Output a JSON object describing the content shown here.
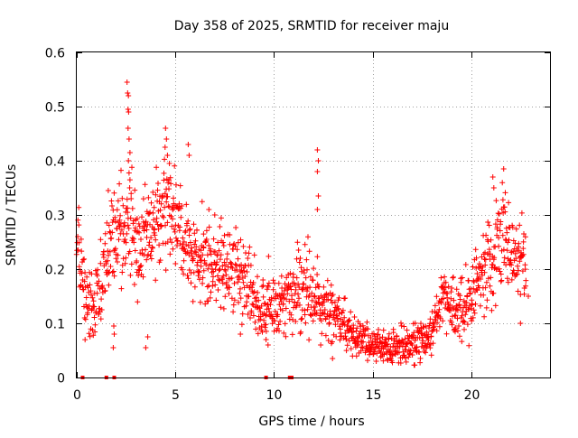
{
  "chart_data": {
    "type": "scatter",
    "title": "Day 358 of 2025, SRMTID for receiver maju",
    "xlabel": "GPS time / hours",
    "ylabel": "SRMTID / TECUs",
    "xlim": [
      0,
      24
    ],
    "ylim": [
      0,
      0.6
    ],
    "xticks": [
      0,
      5,
      10,
      15,
      20
    ],
    "xtick_labels": [
      "0",
      "5",
      "10",
      "15",
      "20"
    ],
    "yticks": [
      0,
      0.1,
      0.2,
      0.3,
      0.4,
      0.5,
      0.6
    ],
    "ytick_labels": [
      "0",
      "0.1",
      "0.2",
      "0.3",
      "0.4",
      "0.5",
      "0.6"
    ],
    "grid": true,
    "marker": "+",
    "color": "#ff0000",
    "series": [
      {
        "name": "SRMTID",
        "envelope": [
          {
            "x": 0.0,
            "y": 0.26,
            "spread": 0.05
          },
          {
            "x": 0.3,
            "y": 0.17,
            "spread": 0.035
          },
          {
            "x": 0.8,
            "y": 0.13,
            "spread": 0.04
          },
          {
            "x": 1.3,
            "y": 0.19,
            "spread": 0.05
          },
          {
            "x": 1.8,
            "y": 0.25,
            "spread": 0.06
          },
          {
            "x": 2.5,
            "y": 0.29,
            "spread": 0.065
          },
          {
            "x": 3.2,
            "y": 0.24,
            "spread": 0.07
          },
          {
            "x": 4.0,
            "y": 0.29,
            "spread": 0.06
          },
          {
            "x": 4.7,
            "y": 0.32,
            "spread": 0.06
          },
          {
            "x": 5.5,
            "y": 0.24,
            "spread": 0.05
          },
          {
            "x": 6.5,
            "y": 0.21,
            "spread": 0.045
          },
          {
            "x": 7.5,
            "y": 0.21,
            "spread": 0.045
          },
          {
            "x": 8.5,
            "y": 0.17,
            "spread": 0.045
          },
          {
            "x": 9.5,
            "y": 0.12,
            "spread": 0.04
          },
          {
            "x": 10.5,
            "y": 0.15,
            "spread": 0.04
          },
          {
            "x": 11.3,
            "y": 0.17,
            "spread": 0.045
          },
          {
            "x": 12.2,
            "y": 0.14,
            "spread": 0.04
          },
          {
            "x": 13.0,
            "y": 0.11,
            "spread": 0.035
          },
          {
            "x": 14.0,
            "y": 0.08,
            "spread": 0.025
          },
          {
            "x": 15.0,
            "y": 0.06,
            "spread": 0.02
          },
          {
            "x": 16.0,
            "y": 0.055,
            "spread": 0.02
          },
          {
            "x": 17.0,
            "y": 0.06,
            "spread": 0.02
          },
          {
            "x": 18.0,
            "y": 0.08,
            "spread": 0.025
          },
          {
            "x": 18.6,
            "y": 0.15,
            "spread": 0.03
          },
          {
            "x": 19.5,
            "y": 0.11,
            "spread": 0.035
          },
          {
            "x": 20.2,
            "y": 0.17,
            "spread": 0.04
          },
          {
            "x": 21.0,
            "y": 0.21,
            "spread": 0.05
          },
          {
            "x": 21.7,
            "y": 0.26,
            "spread": 0.06
          },
          {
            "x": 22.3,
            "y": 0.22,
            "spread": 0.05
          },
          {
            "x": 22.8,
            "y": 0.22,
            "spread": 0.05
          }
        ],
        "spikes": [
          {
            "x": 2.55,
            "y": 0.545
          },
          {
            "x": 2.58,
            "y": 0.525
          },
          {
            "x": 2.62,
            "y": 0.52
          },
          {
            "x": 2.6,
            "y": 0.495
          },
          {
            "x": 2.63,
            "y": 0.49
          },
          {
            "x": 2.6,
            "y": 0.46
          },
          {
            "x": 2.65,
            "y": 0.44
          },
          {
            "x": 2.7,
            "y": 0.415
          },
          {
            "x": 2.62,
            "y": 0.4
          },
          {
            "x": 4.5,
            "y": 0.46
          },
          {
            "x": 4.55,
            "y": 0.44
          },
          {
            "x": 4.48,
            "y": 0.425
          },
          {
            "x": 4.6,
            "y": 0.41
          },
          {
            "x": 4.7,
            "y": 0.395
          },
          {
            "x": 5.65,
            "y": 0.43
          },
          {
            "x": 5.7,
            "y": 0.41
          },
          {
            "x": 12.2,
            "y": 0.42
          },
          {
            "x": 12.25,
            "y": 0.4
          },
          {
            "x": 12.2,
            "y": 0.38
          },
          {
            "x": 12.25,
            "y": 0.335
          },
          {
            "x": 12.2,
            "y": 0.31
          },
          {
            "x": 21.65,
            "y": 0.385
          },
          {
            "x": 21.1,
            "y": 0.37
          },
          {
            "x": 21.15,
            "y": 0.35
          },
          {
            "x": 1.6,
            "y": 0.345
          },
          {
            "x": 3.5,
            "y": 0.055
          },
          {
            "x": 3.6,
            "y": 0.075
          },
          {
            "x": 1.85,
            "y": 0.055
          },
          {
            "x": 1.9,
            "y": 0.08
          },
          {
            "x": 1.88,
            "y": 0.095
          },
          {
            "x": 0.4,
            "y": 0.11
          },
          {
            "x": 22.9,
            "y": 0.15
          },
          {
            "x": 22.5,
            "y": 0.1
          },
          {
            "x": 6.7,
            "y": 0.31
          },
          {
            "x": 7.0,
            "y": 0.3
          },
          {
            "x": 9.6,
            "y": 0.07
          },
          {
            "x": 9.7,
            "y": 0.06
          },
          {
            "x": 8.3,
            "y": 0.08
          }
        ],
        "zeros": [
          0.3,
          1.5,
          1.9,
          9.6,
          10.8,
          10.9
        ]
      }
    ]
  }
}
